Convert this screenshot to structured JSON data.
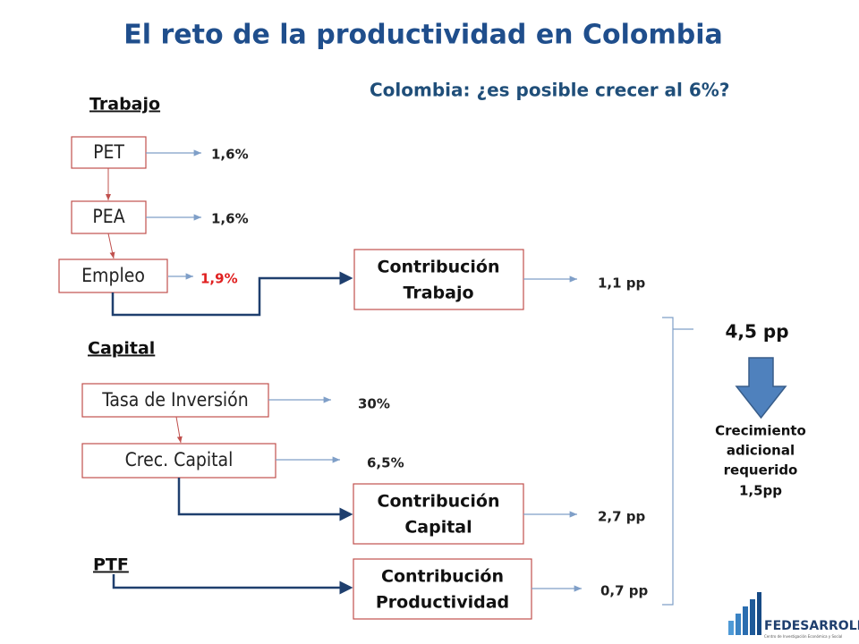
{
  "title": "El reto de la productividad en Colombia",
  "subtitle": "Colombia: ¿es posible crecer al 6%?",
  "sections": {
    "trabajo": "Trabajo",
    "capital": "Capital",
    "ptf": "PTF"
  },
  "nodes": [
    {
      "label": "PET",
      "value": "1,6%"
    },
    {
      "label": "PEA",
      "value": "1,6%"
    },
    {
      "label": "Empleo",
      "value": "1,9%"
    },
    {
      "label": "Tasa de Inversión",
      "value": "30%"
    },
    {
      "label": "Crec. Capital",
      "value": "6,5%"
    }
  ],
  "contributions": [
    {
      "label": [
        "Contribución",
        "Trabajo"
      ],
      "value": "1,1 pp"
    },
    {
      "label": [
        "Contribución",
        "Capital"
      ],
      "value": "2,7 pp"
    },
    {
      "label": [
        "Contribución",
        "Productividad"
      ],
      "value": "0,7 pp"
    }
  ],
  "total": "4,5 pp",
  "note": [
    "Crecimiento",
    "adicional",
    "requerido",
    "1,5pp"
  ],
  "logo": {
    "name": "FEDESARROLLO",
    "tagline": "Centro de Investigación Económica y Social"
  }
}
